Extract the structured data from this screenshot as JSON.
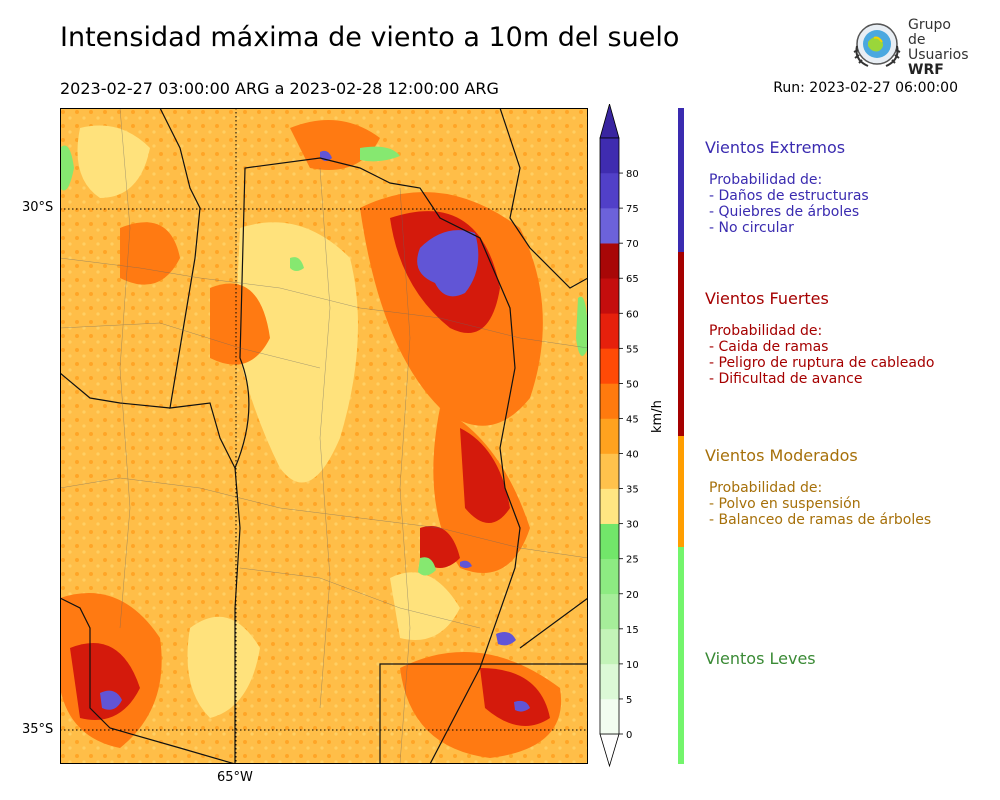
{
  "header": {
    "title": "Intensidad máxima de viento a 10m del suelo",
    "period": "2023-02-27 03:00:00 ARG  a  2023-02-28 12:00:00 ARG",
    "run": "Run: 2023-02-27 06:00:00"
  },
  "logo": {
    "line1": "Grupo de",
    "line2": "Usuarios",
    "line3": "WRF"
  },
  "map": {
    "lat_labels": [
      "30°S",
      "35°S"
    ],
    "lon_labels": [
      "65°W"
    ]
  },
  "colorbar": {
    "unit": "km/h",
    "ticks": [
      "0",
      "5",
      "10",
      "15",
      "20",
      "25",
      "30",
      "35",
      "40",
      "45",
      "50",
      "55",
      "60",
      "65",
      "70",
      "75",
      "80"
    ],
    "colors": [
      "#f2fdf0",
      "#dcf9d6",
      "#c3f3b8",
      "#a6ee9a",
      "#8deb82",
      "#72e66a",
      "#ffe682",
      "#ffc24c",
      "#ffa21f",
      "#ff7a0e",
      "#ff4a06",
      "#e6200c",
      "#c40d0d",
      "#a80707",
      "#6c62da",
      "#5140c8",
      "#3f2cb0"
    ],
    "over_color": "#3925a0",
    "under_color": "#ffffff"
  },
  "categories": [
    {
      "title": "Vientos Extremos",
      "color": "#3a2bb0",
      "text_color": "#3a2bb0",
      "lines": [
        "Probabilidad de:",
        "- Daños de estructuras",
        "- Quiebres de árboles",
        "- No circular"
      ]
    },
    {
      "title": "Vientos Fuertes",
      "color": "#a50000",
      "text_color": "#a50000",
      "lines": [
        "Probabilidad de:",
        "- Caida de ramas",
        "- Peligro de ruptura de cableado",
        "- Dificultad de avance"
      ]
    },
    {
      "title": "Vientos Moderados",
      "color": "#ff9e00",
      "text_color": "#a6700a",
      "lines": [
        "Probabilidad de:",
        "- Polvo en suspensión",
        "- Balanceo de ramas de árboles"
      ]
    },
    {
      "title": "Vientos Leves",
      "color": "#73f56c",
      "text_color": "#3a8a35",
      "lines": []
    }
  ]
}
